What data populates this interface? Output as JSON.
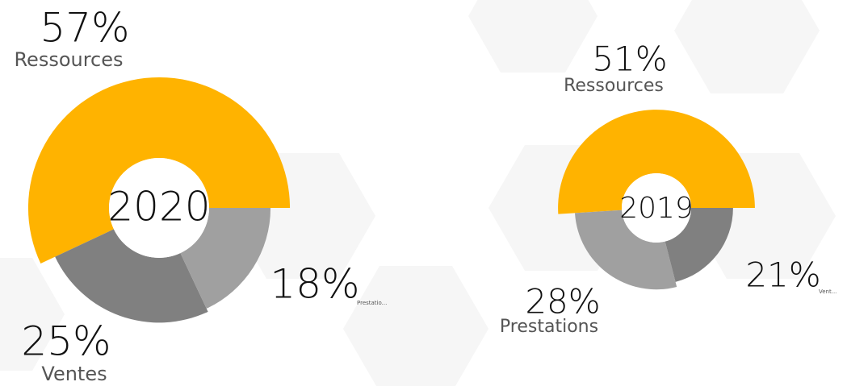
{
  "chart_data": [
    {
      "type": "pie",
      "title": "2020",
      "categories": [
        "Ressources",
        "Ventes",
        "Prestatio..."
      ],
      "values": [
        57,
        25,
        18
      ],
      "value_labels": [
        "57%",
        "25%",
        "18%"
      ],
      "colors": [
        "#ffb300",
        "#808080",
        "#a0a0a0"
      ]
    },
    {
      "type": "pie",
      "title": "2019",
      "categories": [
        "Ressources",
        "Prestations",
        "Vent..."
      ],
      "values": [
        51,
        28,
        21
      ],
      "value_labels": [
        "51%",
        "28%",
        "21%"
      ],
      "colors": [
        "#ffb300",
        "#a0a0a0",
        "#808080"
      ]
    }
  ]
}
